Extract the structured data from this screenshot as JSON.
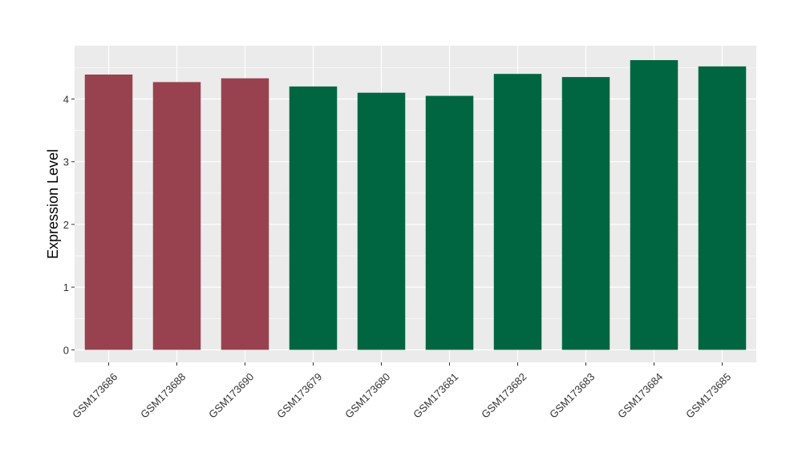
{
  "chart_data": {
    "type": "bar",
    "title": "",
    "xlabel": "",
    "ylabel": "Expression Level",
    "ylim": [
      -0.2,
      4.85
    ],
    "yticks": [
      0,
      1,
      2,
      3,
      4
    ],
    "grid": true,
    "legend": "none",
    "categories": [
      "GSM173686",
      "GSM173688",
      "GSM173690",
      "GSM173679",
      "GSM173680",
      "GSM173681",
      "GSM173682",
      "GSM173683",
      "GSM173684",
      "GSM173685"
    ],
    "values": [
      4.39,
      4.27,
      4.33,
      4.2,
      4.1,
      4.05,
      4.4,
      4.35,
      4.62,
      4.52
    ],
    "bar_colors": [
      "#99424f",
      "#99424f",
      "#99424f",
      "#006642",
      "#006642",
      "#006642",
      "#006642",
      "#006642",
      "#006642",
      "#006642"
    ],
    "colors": {
      "panel_background": "#ebebeb",
      "grid_major": "#ffffff",
      "axis_text": "#333333",
      "title_text": "#000000"
    }
  }
}
